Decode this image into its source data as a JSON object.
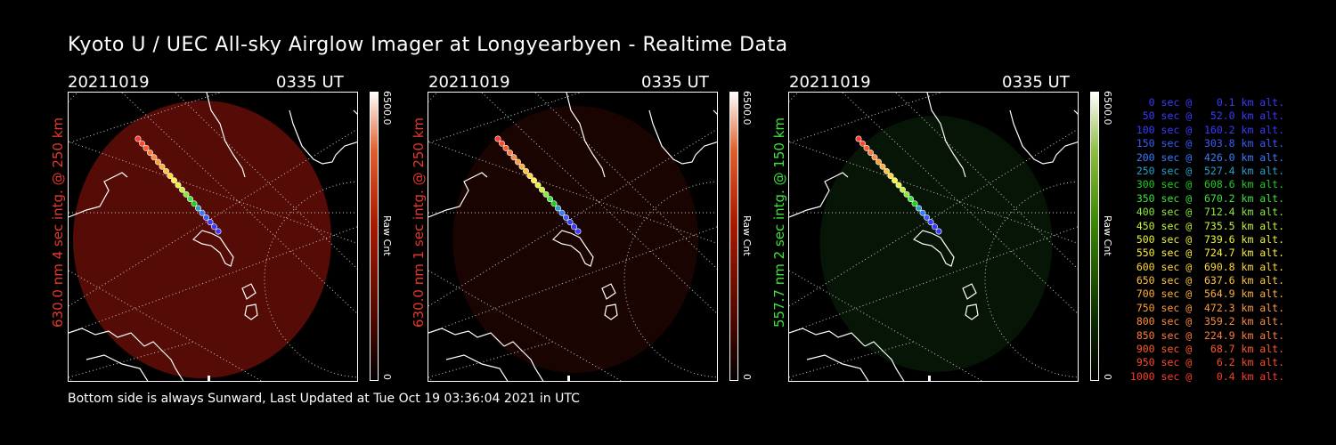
{
  "title": "Kyoto U / UEC All-sky Airglow Imager at Longyearbyen - Realtime Data",
  "panels": [
    {
      "date": "20211019",
      "time": "0335 UT",
      "ylabel": "630.0 nm 4 sec intg. @ 250 km",
      "ylabel_color": "#e8382a",
      "scale_max": "6500.0",
      "scale_min": "0",
      "scale_label": "Raw Cnt",
      "bar_color": "#cc2000",
      "glow": "#5a0c06",
      "glow_visible": true
    },
    {
      "date": "20211019",
      "time": "0335 UT",
      "ylabel": "630.0 nm 1 sec intg. @ 250 km",
      "ylabel_color": "#e8382a",
      "scale_max": "6500.0",
      "scale_min": "0",
      "scale_label": "Raw Cnt",
      "bar_color": "#cc2000",
      "glow": "#1a0402",
      "glow_visible": true
    },
    {
      "date": "20211019",
      "time": "0335 UT",
      "ylabel": "557.7 nm 2 sec intg. @ 150 km",
      "ylabel_color": "#3ee23e",
      "scale_max": "6500.0",
      "scale_min": "0",
      "scale_label": "Raw Cnt",
      "bar_color": "#3a9000",
      "glow": "#061606",
      "glow_visible": true
    }
  ],
  "legend": [
    {
      "text": "   0 sec @    0.1 km alt.",
      "color": "#3a3aff"
    },
    {
      "text": "  50 sec @   52.0 km alt.",
      "color": "#3a3aff"
    },
    {
      "text": " 100 sec @  160.2 km alt.",
      "color": "#3a3aff"
    },
    {
      "text": " 150 sec @  303.8 km alt.",
      "color": "#3a5cff"
    },
    {
      "text": " 200 sec @  426.0 km alt.",
      "color": "#3a7cff"
    },
    {
      "text": " 250 sec @  527.4 km alt.",
      "color": "#2aa0c8"
    },
    {
      "text": " 300 sec @  608.6 km alt.",
      "color": "#22cc22"
    },
    {
      "text": " 350 sec @  670.2 km alt.",
      "color": "#3ee23e"
    },
    {
      "text": " 400 sec @  712.4 km alt.",
      "color": "#8ce83a"
    },
    {
      "text": " 450 sec @  735.5 km alt.",
      "color": "#c8f03a"
    },
    {
      "text": " 500 sec @  739.6 km alt.",
      "color": "#ecf23a"
    },
    {
      "text": " 550 sec @  724.7 km alt.",
      "color": "#ffee3a"
    },
    {
      "text": " 600 sec @  690.8 km alt.",
      "color": "#ffd83a"
    },
    {
      "text": " 650 sec @  637.6 km alt.",
      "color": "#ffc43a"
    },
    {
      "text": " 700 sec @  564.9 km alt.",
      "color": "#ffb03a"
    },
    {
      "text": " 750 sec @  472.3 km alt.",
      "color": "#ff9c3a"
    },
    {
      "text": " 800 sec @  359.2 km alt.",
      "color": "#ff8a3a"
    },
    {
      "text": " 850 sec @  224.9 km alt.",
      "color": "#ff7a3a"
    },
    {
      "text": " 900 sec @   68.7 km alt.",
      "color": "#ff5a2a"
    },
    {
      "text": " 950 sec @    6.2 km alt.",
      "color": "#ff4a2a"
    },
    {
      "text": "1000 sec @    0.4 km alt.",
      "color": "#ff3a2a"
    }
  ],
  "footer": "Bottom side is always Sunward, Last Updated at Tue Oct 19 03:36:04 2021 in UTC"
}
